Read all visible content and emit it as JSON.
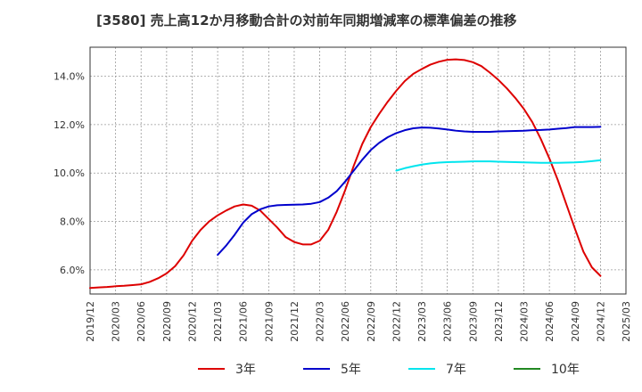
{
  "chart_data": {
    "type": "line",
    "title": "[3580]  売上高12か月移動合計の対前年同期増減率の標準偏差の推移",
    "xlabel": "",
    "ylabel": "",
    "x_ticks": [
      "2019/12",
      "2020/03",
      "2020/06",
      "2020/09",
      "2020/12",
      "2021/03",
      "2021/06",
      "2021/09",
      "2021/12",
      "2022/03",
      "2022/06",
      "2022/09",
      "2022/12",
      "2023/03",
      "2023/06",
      "2023/09",
      "2023/12",
      "2024/03",
      "2024/06",
      "2024/09",
      "2024/12",
      "2025/03"
    ],
    "y_ticks": [
      "6.0%",
      "8.0%",
      "10.0%",
      "12.0%",
      "14.0%"
    ],
    "y_tick_values": [
      6,
      8,
      10,
      12,
      14
    ],
    "ylim": [
      5.0,
      15.2
    ],
    "grid": true,
    "legend_position": "bottom",
    "series": [
      {
        "name": "3年",
        "color": "#dd0000",
        "x": [
          "2019/12",
          "2020/01",
          "2020/02",
          "2020/03",
          "2020/04",
          "2020/05",
          "2020/06",
          "2020/07",
          "2020/08",
          "2020/09",
          "2020/10",
          "2020/11",
          "2020/12",
          "2021/01",
          "2021/02",
          "2021/03",
          "2021/04",
          "2021/05",
          "2021/06",
          "2021/07",
          "2021/08",
          "2021/09",
          "2021/10",
          "2021/11",
          "2021/12",
          "2022/01",
          "2022/02",
          "2022/03",
          "2022/04",
          "2022/05",
          "2022/06",
          "2022/07",
          "2022/08",
          "2022/09",
          "2022/10",
          "2022/11",
          "2022/12",
          "2023/01",
          "2023/02",
          "2023/03",
          "2023/04",
          "2023/05",
          "2023/06",
          "2023/07",
          "2023/08",
          "2023/09",
          "2023/10",
          "2023/11",
          "2023/12",
          "2024/01",
          "2024/02",
          "2024/03",
          "2024/04",
          "2024/05",
          "2024/06",
          "2024/07",
          "2024/08",
          "2024/09",
          "2024/10",
          "2024/11",
          "2024/12"
        ],
        "values": [
          5.25,
          5.27,
          5.29,
          5.32,
          5.34,
          5.37,
          5.4,
          5.5,
          5.65,
          5.85,
          6.15,
          6.6,
          7.2,
          7.65,
          8.0,
          8.25,
          8.45,
          8.62,
          8.7,
          8.65,
          8.45,
          8.1,
          7.75,
          7.35,
          7.15,
          7.05,
          7.05,
          7.2,
          7.65,
          8.4,
          9.3,
          10.3,
          11.2,
          11.9,
          12.45,
          12.95,
          13.4,
          13.8,
          14.1,
          14.3,
          14.48,
          14.6,
          14.68,
          14.7,
          14.67,
          14.58,
          14.42,
          14.15,
          13.85,
          13.5,
          13.1,
          12.65,
          12.1,
          11.4,
          10.6,
          9.7,
          8.7,
          7.7,
          6.75,
          6.1,
          5.75
        ]
      },
      {
        "name": "5年",
        "color": "#0000cc",
        "x": [
          "2021/03",
          "2021/04",
          "2021/05",
          "2021/06",
          "2021/07",
          "2021/08",
          "2021/09",
          "2021/10",
          "2021/11",
          "2021/12",
          "2022/01",
          "2022/02",
          "2022/03",
          "2022/04",
          "2022/05",
          "2022/06",
          "2022/07",
          "2022/08",
          "2022/09",
          "2022/10",
          "2022/11",
          "2022/12",
          "2023/01",
          "2023/02",
          "2023/03",
          "2023/04",
          "2023/05",
          "2023/06",
          "2023/07",
          "2023/08",
          "2023/09",
          "2023/10",
          "2023/11",
          "2023/12",
          "2024/01",
          "2024/02",
          "2024/03",
          "2024/04",
          "2024/05",
          "2024/06",
          "2024/07",
          "2024/08",
          "2024/09",
          "2024/10",
          "2024/11",
          "2024/12"
        ],
        "values": [
          6.62,
          7.0,
          7.45,
          7.95,
          8.3,
          8.5,
          8.62,
          8.67,
          8.68,
          8.69,
          8.7,
          8.73,
          8.8,
          8.98,
          9.25,
          9.65,
          10.1,
          10.55,
          10.95,
          11.25,
          11.48,
          11.65,
          11.77,
          11.85,
          11.88,
          11.87,
          11.84,
          11.8,
          11.75,
          11.72,
          11.7,
          11.7,
          11.7,
          11.72,
          11.73,
          11.74,
          11.75,
          11.77,
          11.78,
          11.8,
          11.83,
          11.86,
          11.9,
          11.9,
          11.9,
          11.91
        ]
      },
      {
        "name": "7年",
        "color": "#00e5ee",
        "x": [
          "2022/12",
          "2023/01",
          "2023/02",
          "2023/03",
          "2023/04",
          "2023/05",
          "2023/06",
          "2023/07",
          "2023/08",
          "2023/09",
          "2023/10",
          "2023/11",
          "2023/12",
          "2024/01",
          "2024/02",
          "2024/03",
          "2024/04",
          "2024/05",
          "2024/06",
          "2024/07",
          "2024/08",
          "2024/09",
          "2024/10",
          "2024/11",
          "2024/12"
        ],
        "values": [
          10.1,
          10.2,
          10.28,
          10.35,
          10.4,
          10.43,
          10.45,
          10.46,
          10.47,
          10.48,
          10.48,
          10.48,
          10.47,
          10.46,
          10.45,
          10.44,
          10.43,
          10.42,
          10.42,
          10.42,
          10.43,
          10.44,
          10.46,
          10.49,
          10.53
        ]
      },
      {
        "name": "10年",
        "color": "#228822",
        "x": [],
        "values": []
      }
    ]
  }
}
